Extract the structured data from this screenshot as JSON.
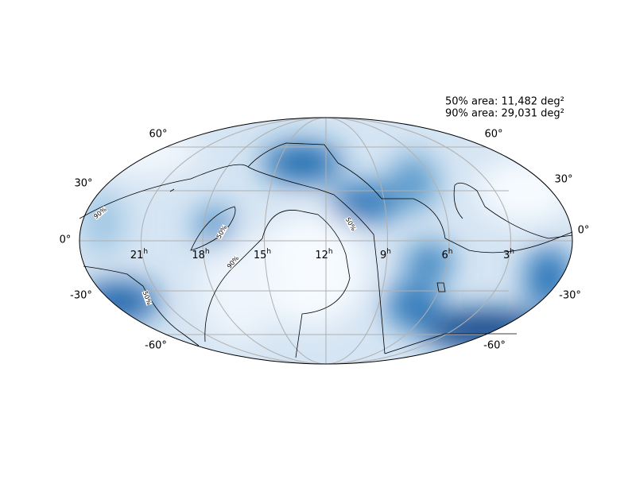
{
  "annotations": [
    "50% area: 11,482 deg²",
    "90% area: 29,031 deg²"
  ],
  "ra_ticks": [
    {
      "value": "21",
      "unit": "h"
    },
    {
      "value": "18",
      "unit": "h"
    },
    {
      "value": "15",
      "unit": "h"
    },
    {
      "value": "12",
      "unit": "h"
    },
    {
      "value": "9",
      "unit": "h"
    },
    {
      "value": "6",
      "unit": "h"
    },
    {
      "value": "3",
      "unit": "h"
    }
  ],
  "dec_ticks_left": [
    "60°",
    "30°",
    "0°",
    "-30°",
    "-60°"
  ],
  "dec_ticks_right": [
    "60°",
    "30°",
    "0°",
    "-30°",
    "-60°"
  ],
  "contour_labels": [
    "90%",
    "50%",
    "90%",
    "50%",
    "50%"
  ]
}
